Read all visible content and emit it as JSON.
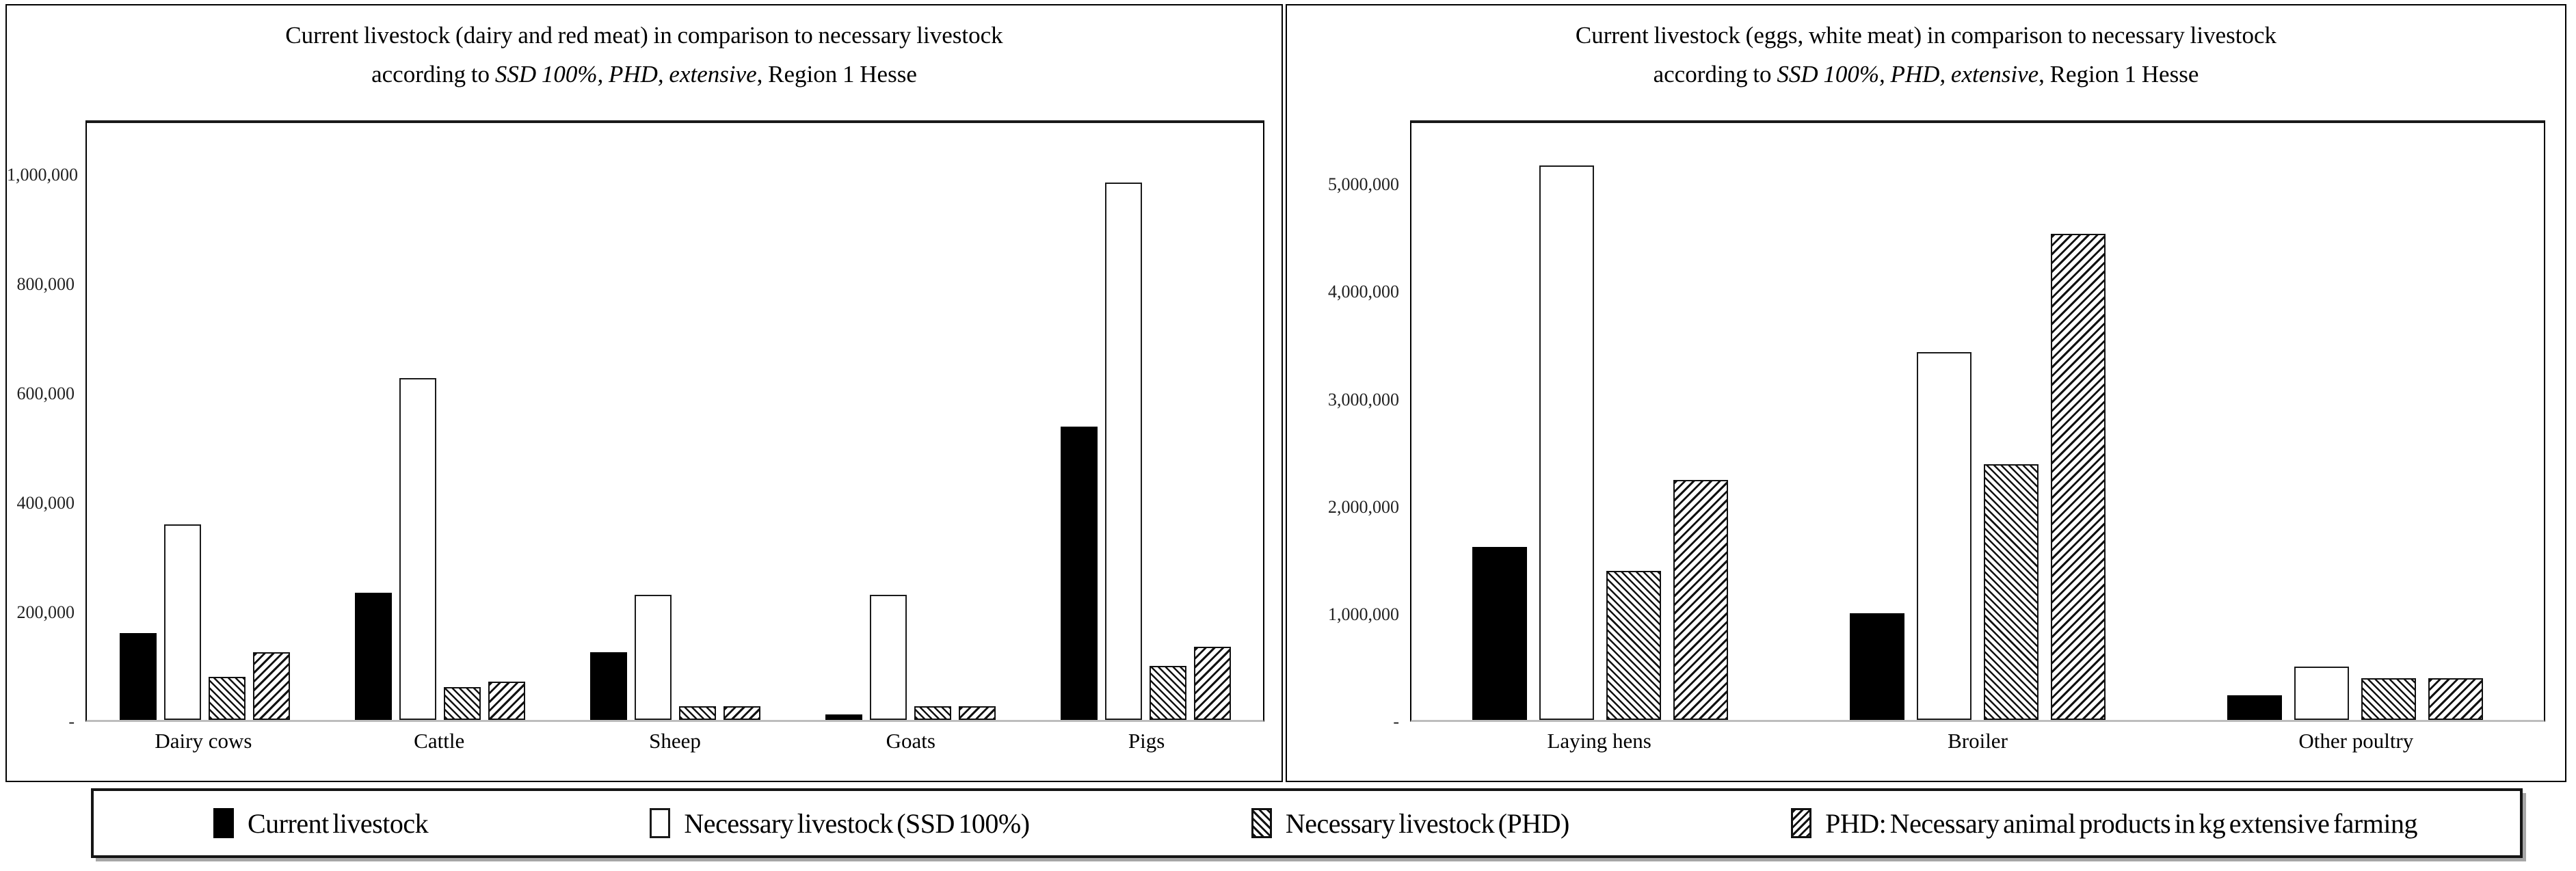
{
  "figure": {
    "background": "#ffffff",
    "border_color": "#000000",
    "text_color": "#111111",
    "baseline_color": "#bdbdbd"
  },
  "chart_data": [
    {
      "type": "bar",
      "title_line1": "Current livestock (dairy and red meat) in comparison to necessary livestock",
      "title_line2_prefix": "according to ",
      "title_line2_italic": "SSD 100%, PHD, extensive",
      "title_line2_suffix": ", Region 1 Hesse",
      "categories": [
        "Dairy cows",
        "Cattle",
        "Sheep",
        "Goats",
        "Pigs"
      ],
      "series": [
        {
          "name": "Current livestock",
          "pattern": "solid-black",
          "values": [
            160000,
            235000,
            125000,
            10000,
            540000
          ]
        },
        {
          "name": "Necessary livestock (SSD 100%)",
          "pattern": "white-outline",
          "values": [
            360000,
            630000,
            230000,
            230000,
            990000
          ]
        },
        {
          "name": "Necessary livestock (PHD)",
          "pattern": "hatch-backslash",
          "values": [
            80000,
            60000,
            25000,
            25000,
            100000
          ]
        },
        {
          "name": "PHD: Necessary animal products in kg extensive farming",
          "pattern": "hatch-slash",
          "values": [
            125000,
            70000,
            25000,
            25000,
            135000
          ]
        }
      ],
      "ylim": [
        0,
        1100000
      ],
      "yticks": [
        {
          "value": 1000000,
          "label": "1,000,000"
        },
        {
          "value": 800000,
          "label": "800,000"
        },
        {
          "value": 600000,
          "label": "600,000"
        },
        {
          "value": 400000,
          "label": "400,000"
        },
        {
          "value": 200000,
          "label": "200,000"
        },
        {
          "value": 0,
          "label": "-"
        }
      ],
      "grid": false,
      "legend_position": "shared-bottom"
    },
    {
      "type": "bar",
      "title_line1": "Current livestock (eggs, white meat) in comparison to necessary livestock",
      "title_line2_prefix": "according to ",
      "title_line2_italic": "SSD 100%, PHD, extensive",
      "title_line2_suffix": ", Region 1 Hesse",
      "categories": [
        "Laying hens",
        "Broiler",
        "Other poultry"
      ],
      "series": [
        {
          "name": "Current livestock",
          "pattern": "solid-black",
          "values": [
            1620000,
            1000000,
            230000
          ]
        },
        {
          "name": "Necessary livestock (SSD 100%)",
          "pattern": "white-outline",
          "values": [
            5200000,
            3450000,
            500000
          ]
        },
        {
          "name": "Necessary livestock (PHD)",
          "pattern": "hatch-backslash",
          "values": [
            1400000,
            2400000,
            390000
          ]
        },
        {
          "name": "PHD: Necessary animal products in kg extensive farming",
          "pattern": "hatch-slash",
          "values": [
            2250000,
            4560000,
            390000
          ]
        }
      ],
      "ylim": [
        0,
        5600000
      ],
      "yticks": [
        {
          "value": 5000000,
          "label": "5,000,000"
        },
        {
          "value": 4000000,
          "label": "4,000,000"
        },
        {
          "value": 3000000,
          "label": "3,000,000"
        },
        {
          "value": 2000000,
          "label": "2,000,000"
        },
        {
          "value": 1000000,
          "label": "1,000,000"
        },
        {
          "value": 0,
          "label": "-"
        }
      ],
      "grid": false,
      "legend_position": "shared-bottom"
    }
  ],
  "legend": {
    "items": [
      {
        "label": "Current livestock",
        "swatch": "solid-black"
      },
      {
        "label": "Necessary livestock (SSD 100%)",
        "swatch": "white-outline"
      },
      {
        "label": "Necessary livestock (PHD)",
        "swatch": "hatch-backslash"
      },
      {
        "label": "PHD: Necessary animal products in kg extensive farming",
        "swatch": "hatch-slash"
      }
    ]
  }
}
